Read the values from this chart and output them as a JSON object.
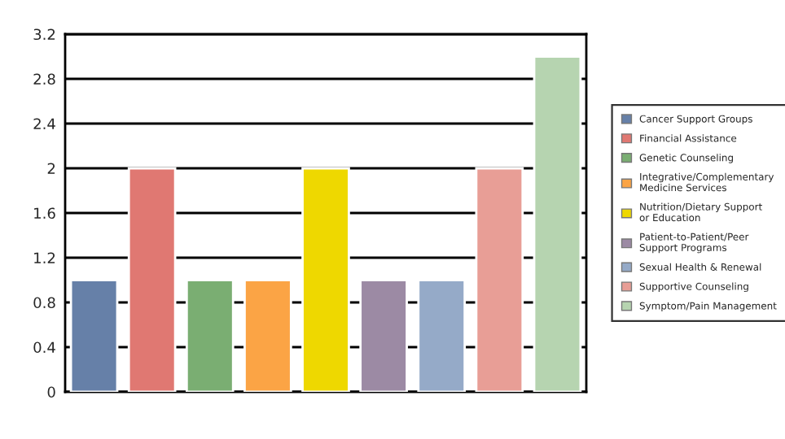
{
  "chart_data": {
    "type": "bar",
    "categories": [
      null,
      null,
      null,
      null,
      null,
      null,
      null,
      null,
      null
    ],
    "series": [
      {
        "name": "Cancer Support Groups",
        "color": "#6680a8",
        "values": [
          1,
          null,
          null,
          null,
          null,
          null,
          null,
          null,
          null
        ]
      },
      {
        "name": "Financial Assistance",
        "color": "#e07872",
        "values": [
          null,
          2,
          null,
          null,
          null,
          null,
          null,
          null,
          null
        ]
      },
      {
        "name": "Genetic Counseling",
        "color": "#7aae72",
        "values": [
          null,
          null,
          1,
          null,
          null,
          null,
          null,
          null,
          null
        ]
      },
      {
        "name": "Integrative/Complementary Medicine Services",
        "color": "#fba445",
        "values": [
          null,
          null,
          null,
          1,
          null,
          null,
          null,
          null,
          null
        ]
      },
      {
        "name": "Nutrition/Dietary Support or Education",
        "color": "#eed800",
        "values": [
          null,
          null,
          null,
          null,
          2,
          null,
          null,
          null,
          null
        ]
      },
      {
        "name": "Patient-to-Patient/Peer Support Programs",
        "color": "#9c8aa4",
        "values": [
          null,
          null,
          null,
          null,
          null,
          1,
          null,
          null,
          null
        ]
      },
      {
        "name": "Sexual Health & Renewal",
        "color": "#95aac8",
        "values": [
          null,
          null,
          null,
          null,
          null,
          null,
          1,
          null,
          null
        ]
      },
      {
        "name": "Supportive Counseling",
        "color": "#e89e96",
        "values": [
          null,
          null,
          null,
          null,
          null,
          null,
          null,
          2,
          null
        ]
      },
      {
        "name": "Symptom/Pain Management",
        "color": "#b6d4b0",
        "values": [
          null,
          null,
          null,
          null,
          null,
          null,
          null,
          null,
          3
        ]
      }
    ],
    "ylim": [
      0,
      3.2
    ],
    "yticks": [
      0,
      0.4,
      0.8,
      1.2,
      1.6,
      2,
      2.4,
      2.8,
      3.2
    ],
    "grid": "y",
    "legend": "right"
  }
}
